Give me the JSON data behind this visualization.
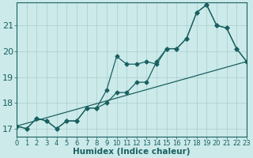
{
  "xlabel": "Humidex (Indice chaleur)",
  "bg_color": "#cceaea",
  "grid_color": "#aacccc",
  "line_color": "#1a6060",
  "x_ticks": [
    0,
    1,
    2,
    3,
    4,
    5,
    6,
    7,
    8,
    9,
    10,
    11,
    12,
    13,
    14,
    15,
    16,
    17,
    18,
    19,
    20,
    21,
    22,
    23
  ],
  "y_ticks": [
    17,
    18,
    19,
    20,
    21
  ],
  "xlim": [
    0,
    23
  ],
  "ylim": [
    16.7,
    21.9
  ],
  "line1_x": [
    0,
    1,
    2,
    3,
    4,
    5,
    6,
    7,
    8,
    9,
    10,
    11,
    12,
    13,
    14,
    15,
    16,
    17,
    18,
    19,
    20,
    21,
    22,
    23
  ],
  "line1_y": [
    17.1,
    17.0,
    17.4,
    17.3,
    17.0,
    17.3,
    17.3,
    17.8,
    17.8,
    18.5,
    19.8,
    19.5,
    19.5,
    19.6,
    19.5,
    20.1,
    20.1,
    20.5,
    21.5,
    21.8,
    21.0,
    20.9,
    20.1,
    19.6
  ],
  "line2_x": [
    0,
    1,
    2,
    3,
    4,
    5,
    6,
    7,
    8,
    9,
    10,
    11,
    12,
    13,
    14,
    15,
    16,
    17,
    18,
    19,
    20,
    21,
    22,
    23
  ],
  "line2_y": [
    17.1,
    17.0,
    17.4,
    17.3,
    17.0,
    17.3,
    17.3,
    17.8,
    17.8,
    18.0,
    18.4,
    18.4,
    18.8,
    18.8,
    19.6,
    20.1,
    20.1,
    20.5,
    21.5,
    21.8,
    21.0,
    20.9,
    20.1,
    19.6
  ],
  "line3_x": [
    0,
    23
  ],
  "line3_y": [
    17.1,
    19.6
  ],
  "marker_size": 2.5,
  "line_width": 0.9,
  "font_size_ticks": 6,
  "font_size_xlabel": 7.5
}
